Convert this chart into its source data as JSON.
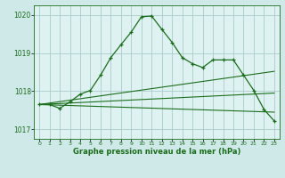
{
  "title": "Graphe pression niveau de la mer (hPa)",
  "background_color": "#cfe8e8",
  "plot_bg_color": "#dff2f2",
  "grid_color": "#aacccc",
  "line_color": "#1a6e1a",
  "xlim": [
    -0.5,
    23.5
  ],
  "ylim": [
    1016.75,
    1020.25
  ],
  "yticks": [
    1017,
    1018,
    1019,
    1020
  ],
  "xtick_labels": [
    "0",
    "1",
    "2",
    "3",
    "4",
    "5",
    "6",
    "7",
    "8",
    "9",
    "10",
    "11",
    "12",
    "13",
    "14",
    "15",
    "16",
    "17",
    "18",
    "19",
    "20",
    "21",
    "22",
    "23"
  ],
  "xticks": [
    0,
    1,
    2,
    3,
    4,
    5,
    6,
    7,
    8,
    9,
    10,
    11,
    12,
    13,
    14,
    15,
    16,
    17,
    18,
    19,
    20,
    21,
    22,
    23
  ],
  "series_main_x": [
    0,
    1,
    2,
    3,
    4,
    5,
    6,
    7,
    8,
    9,
    10,
    11,
    12,
    13,
    14,
    15,
    16,
    17,
    18,
    19,
    20,
    21,
    22,
    23
  ],
  "series_main_y": [
    1017.65,
    1017.65,
    1017.55,
    1017.72,
    1017.92,
    1018.02,
    1018.42,
    1018.88,
    1019.22,
    1019.55,
    1019.95,
    1019.97,
    1019.62,
    1019.28,
    1018.88,
    1018.72,
    1018.62,
    1018.82,
    1018.82,
    1018.82,
    1018.42,
    1018.02,
    1017.52,
    1017.22
  ],
  "line1_x": [
    0,
    23
  ],
  "line1_y": [
    1017.65,
    1017.45
  ],
  "line2_x": [
    0,
    23
  ],
  "line2_y": [
    1017.65,
    1017.95
  ],
  "line3_x": [
    0,
    23
  ],
  "line3_y": [
    1017.65,
    1018.52
  ]
}
